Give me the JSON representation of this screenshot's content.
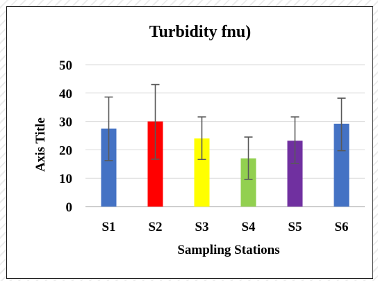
{
  "chart_data": {
    "type": "bar",
    "title": "Turbidity fnu)",
    "xlabel": "Sampling Stations",
    "ylabel": "Axis Title",
    "categories": [
      "S1",
      "S2",
      "S3",
      "S4",
      "S5",
      "S6"
    ],
    "values": [
      27.5,
      30,
      24,
      17,
      23.2,
      29.2
    ],
    "error_low": [
      16.2,
      16.7,
      16.6,
      9.6,
      15.2,
      19.7
    ],
    "error_high": [
      38.6,
      43,
      31.6,
      24.5,
      31.6,
      38.2
    ],
    "bar_colors": [
      "#4472c4",
      "#ff0000",
      "#ffff00",
      "#92d050",
      "#7030a0",
      "#4472c4"
    ],
    "ylim": [
      0,
      50
    ],
    "yticks": [
      "0",
      "10",
      "20",
      "30",
      "40",
      "50"
    ],
    "grid": true,
    "legend": "none"
  }
}
